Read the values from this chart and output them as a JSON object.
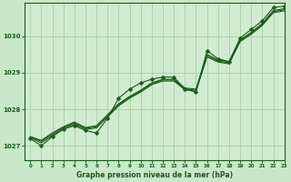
{
  "background_color": "#c8e8c8",
  "plot_bg_color": "#d0ecd0",
  "grid_color": "#a0c8a0",
  "line_color": "#1a5c1a",
  "title": "Graphe pression niveau de la mer (hPa)",
  "xlim": [
    -0.5,
    23
  ],
  "ylim": [
    1026.6,
    1030.9
  ],
  "yticks": [
    1027,
    1028,
    1029,
    1030
  ],
  "xticks": [
    0,
    1,
    2,
    3,
    4,
    5,
    6,
    7,
    8,
    9,
    10,
    11,
    12,
    13,
    14,
    15,
    16,
    17,
    18,
    19,
    20,
    21,
    22,
    23
  ],
  "series_smooth": [
    [
      1027.25,
      1027.15,
      1027.35,
      1027.52,
      1027.65,
      1027.5,
      1027.55,
      1027.85,
      1028.15,
      1028.35,
      1028.52,
      1028.72,
      1028.82,
      1028.82,
      1028.58,
      1028.55,
      1029.5,
      1029.35,
      1029.3,
      1029.9,
      1030.1,
      1030.35,
      1030.7,
      1030.75
    ],
    [
      1027.25,
      1027.12,
      1027.32,
      1027.5,
      1027.62,
      1027.48,
      1027.52,
      1027.82,
      1028.12,
      1028.33,
      1028.5,
      1028.7,
      1028.8,
      1028.8,
      1028.56,
      1028.52,
      1029.46,
      1029.32,
      1029.27,
      1029.88,
      1030.08,
      1030.32,
      1030.67,
      1030.72
    ],
    [
      1027.22,
      1027.08,
      1027.28,
      1027.47,
      1027.59,
      1027.45,
      1027.49,
      1027.79,
      1028.09,
      1028.3,
      1028.47,
      1028.67,
      1028.77,
      1028.77,
      1028.53,
      1028.49,
      1029.43,
      1029.29,
      1029.24,
      1029.85,
      1030.05,
      1030.29,
      1030.64,
      1030.69
    ]
  ],
  "series_marker": [
    1027.2,
    1027.0,
    1027.25,
    1027.45,
    1027.55,
    1027.42,
    1027.35,
    1027.75,
    1028.3,
    1028.55,
    1028.72,
    1028.82,
    1028.88,
    1028.88,
    1028.55,
    1028.47,
    1029.6,
    1029.38,
    1029.3,
    1029.95,
    1030.18,
    1030.42,
    1030.78,
    1030.82
  ],
  "marker": "D",
  "markersize": 2.5
}
